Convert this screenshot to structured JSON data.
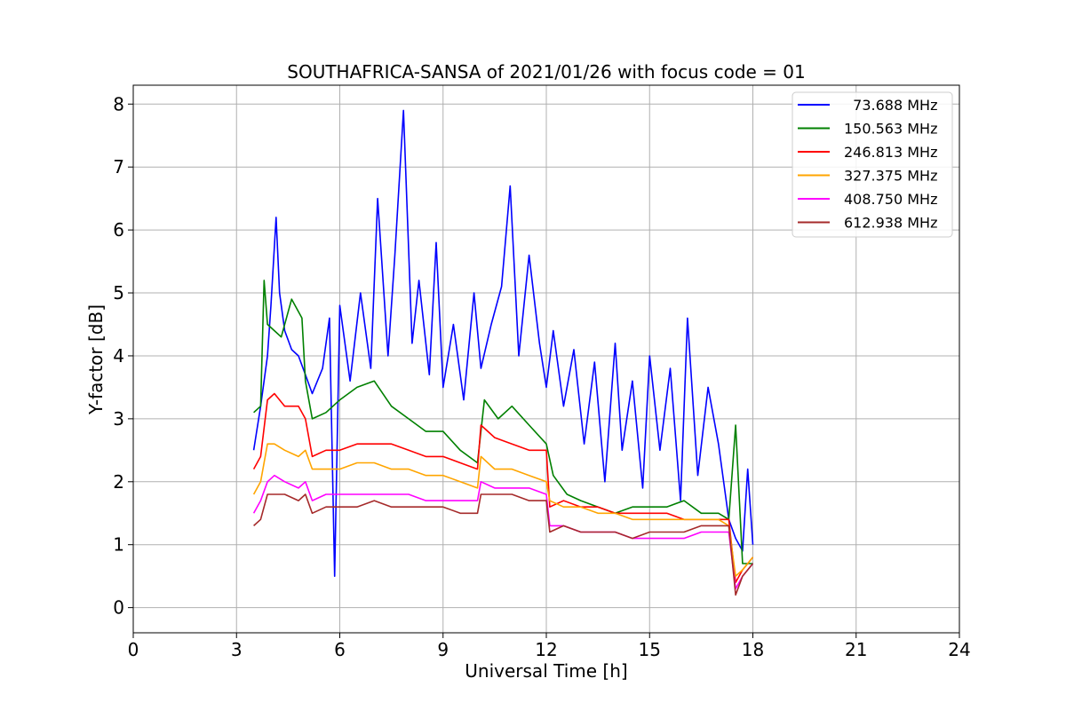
{
  "chart_data": {
    "type": "line",
    "title": "SOUTHAFRICA-SANSA of 2021/01/26 with focus code = 01",
    "xlabel": "Universal Time [h]",
    "ylabel": "Y-factor [dB]",
    "xlim": [
      0,
      24
    ],
    "ylim": [
      -0.4,
      8.3
    ],
    "xticks": [
      0,
      3,
      6,
      9,
      12,
      15,
      18,
      21,
      24
    ],
    "yticks": [
      0,
      1,
      2,
      3,
      4,
      5,
      6,
      7,
      8
    ],
    "grid": true,
    "legend_position": "top-right",
    "series": [
      {
        "name": "  73.688 MHz",
        "color": "#0000ff",
        "x": [
          3.5,
          3.7,
          3.9,
          4.0,
          4.15,
          4.25,
          4.4,
          4.6,
          4.8,
          5.0,
          5.2,
          5.5,
          5.7,
          5.85,
          6.0,
          6.3,
          6.6,
          6.9,
          7.1,
          7.4,
          7.6,
          7.85,
          8.1,
          8.3,
          8.6,
          8.8,
          9.0,
          9.3,
          9.6,
          9.9,
          10.1,
          10.4,
          10.7,
          10.95,
          11.2,
          11.5,
          11.8,
          12.0,
          12.2,
          12.5,
          12.8,
          13.1,
          13.4,
          13.7,
          14.0,
          14.2,
          14.5,
          14.8,
          15.0,
          15.3,
          15.6,
          15.9,
          16.1,
          16.4,
          16.7,
          17.0,
          17.3,
          17.5,
          17.7,
          17.85,
          18.0
        ],
        "values": [
          2.5,
          3.2,
          4.0,
          4.8,
          6.2,
          5.0,
          4.4,
          4.1,
          4.0,
          3.7,
          3.4,
          3.8,
          4.6,
          0.5,
          4.8,
          3.6,
          5.0,
          3.8,
          6.5,
          4.0,
          5.6,
          7.9,
          4.2,
          5.2,
          3.7,
          5.8,
          3.5,
          4.5,
          3.3,
          5.0,
          3.8,
          4.5,
          5.1,
          6.7,
          4.0,
          5.6,
          4.2,
          3.5,
          4.4,
          3.2,
          4.1,
          2.6,
          3.9,
          2.0,
          4.2,
          2.5,
          3.6,
          1.9,
          4.0,
          2.5,
          3.8,
          1.7,
          4.6,
          2.1,
          3.5,
          2.6,
          1.4,
          1.1,
          0.9,
          2.2,
          1.0
        ]
      },
      {
        "name": "150.563 MHz",
        "color": "#008000",
        "x": [
          3.5,
          3.7,
          3.8,
          3.9,
          4.1,
          4.3,
          4.6,
          4.9,
          5.0,
          5.2,
          5.6,
          6.0,
          6.5,
          7.0,
          7.5,
          8.0,
          8.5,
          9.0,
          9.5,
          10.0,
          10.2,
          10.6,
          11.0,
          11.5,
          12.0,
          12.2,
          12.6,
          13.0,
          13.5,
          14.0,
          14.5,
          15.0,
          15.5,
          16.0,
          16.5,
          17.0,
          17.3,
          17.5,
          17.7,
          18.0
        ],
        "values": [
          3.1,
          3.2,
          5.2,
          4.5,
          4.4,
          4.3,
          4.9,
          4.6,
          3.6,
          3.0,
          3.1,
          3.3,
          3.5,
          3.6,
          3.2,
          3.0,
          2.8,
          2.8,
          2.5,
          2.3,
          3.3,
          3.0,
          3.2,
          2.9,
          2.6,
          2.1,
          1.8,
          1.7,
          1.6,
          1.5,
          1.6,
          1.6,
          1.6,
          1.7,
          1.5,
          1.5,
          1.4,
          2.9,
          0.7,
          0.7
        ]
      },
      {
        "name": "246.813 MHz",
        "color": "#ff0000",
        "x": [
          3.5,
          3.7,
          3.9,
          4.1,
          4.4,
          4.8,
          5.0,
          5.2,
          5.6,
          6.0,
          6.5,
          7.0,
          7.5,
          8.0,
          8.5,
          9.0,
          9.5,
          10.0,
          10.1,
          10.5,
          11.0,
          11.5,
          12.0,
          12.1,
          12.5,
          13.0,
          13.5,
          14.0,
          14.5,
          15.0,
          15.5,
          16.0,
          16.5,
          17.0,
          17.3,
          17.5,
          17.7,
          18.0
        ],
        "values": [
          2.2,
          2.4,
          3.3,
          3.4,
          3.2,
          3.2,
          3.0,
          2.4,
          2.5,
          2.5,
          2.6,
          2.6,
          2.6,
          2.5,
          2.4,
          2.4,
          2.3,
          2.2,
          2.9,
          2.7,
          2.6,
          2.5,
          2.5,
          1.6,
          1.7,
          1.6,
          1.6,
          1.5,
          1.5,
          1.5,
          1.5,
          1.4,
          1.4,
          1.4,
          1.4,
          0.4,
          0.6,
          0.8
        ]
      },
      {
        "name": "327.375 MHz",
        "color": "#ffa500",
        "x": [
          3.5,
          3.7,
          3.9,
          4.1,
          4.4,
          4.8,
          5.0,
          5.2,
          5.6,
          6.0,
          6.5,
          7.0,
          7.5,
          8.0,
          8.5,
          9.0,
          9.5,
          10.0,
          10.1,
          10.5,
          11.0,
          11.5,
          12.0,
          12.1,
          12.5,
          13.0,
          13.5,
          14.0,
          14.5,
          15.0,
          15.5,
          16.0,
          16.5,
          17.0,
          17.3,
          17.5,
          17.7,
          18.0
        ],
        "values": [
          1.8,
          2.0,
          2.6,
          2.6,
          2.5,
          2.4,
          2.5,
          2.2,
          2.2,
          2.2,
          2.3,
          2.3,
          2.2,
          2.2,
          2.1,
          2.1,
          2.0,
          1.9,
          2.4,
          2.2,
          2.2,
          2.1,
          2.0,
          1.7,
          1.6,
          1.6,
          1.5,
          1.5,
          1.4,
          1.4,
          1.4,
          1.4,
          1.4,
          1.4,
          1.3,
          0.5,
          0.6,
          0.8
        ]
      },
      {
        "name": "408.750 MHz",
        "color": "#ff00ff",
        "x": [
          3.5,
          3.7,
          3.9,
          4.1,
          4.4,
          4.8,
          5.0,
          5.2,
          5.6,
          6.0,
          6.5,
          7.0,
          7.5,
          8.0,
          8.5,
          9.0,
          9.5,
          10.0,
          10.1,
          10.5,
          11.0,
          11.5,
          12.0,
          12.1,
          12.5,
          13.0,
          13.5,
          14.0,
          14.5,
          15.0,
          15.5,
          16.0,
          16.5,
          17.0,
          17.3,
          17.5,
          17.7,
          18.0
        ],
        "values": [
          1.5,
          1.7,
          2.0,
          2.1,
          2.0,
          1.9,
          2.0,
          1.7,
          1.8,
          1.8,
          1.8,
          1.8,
          1.8,
          1.8,
          1.7,
          1.7,
          1.7,
          1.7,
          2.0,
          1.9,
          1.9,
          1.9,
          1.8,
          1.3,
          1.3,
          1.2,
          1.2,
          1.2,
          1.1,
          1.1,
          1.1,
          1.1,
          1.2,
          1.2,
          1.2,
          0.3,
          0.5,
          0.7
        ]
      },
      {
        "name": "612.938 MHz",
        "color": "#a52a2a",
        "x": [
          3.5,
          3.7,
          3.9,
          4.1,
          4.4,
          4.8,
          5.0,
          5.2,
          5.6,
          6.0,
          6.5,
          7.0,
          7.5,
          8.0,
          8.5,
          9.0,
          9.5,
          10.0,
          10.1,
          10.5,
          11.0,
          11.5,
          12.0,
          12.1,
          12.5,
          13.0,
          13.5,
          14.0,
          14.5,
          15.0,
          15.5,
          16.0,
          16.5,
          17.0,
          17.3,
          17.5,
          17.7,
          18.0
        ],
        "values": [
          1.3,
          1.4,
          1.8,
          1.8,
          1.8,
          1.7,
          1.8,
          1.5,
          1.6,
          1.6,
          1.6,
          1.7,
          1.6,
          1.6,
          1.6,
          1.6,
          1.5,
          1.5,
          1.8,
          1.8,
          1.8,
          1.7,
          1.7,
          1.2,
          1.3,
          1.2,
          1.2,
          1.2,
          1.1,
          1.2,
          1.2,
          1.2,
          1.3,
          1.3,
          1.3,
          0.2,
          0.5,
          0.7
        ]
      }
    ]
  }
}
